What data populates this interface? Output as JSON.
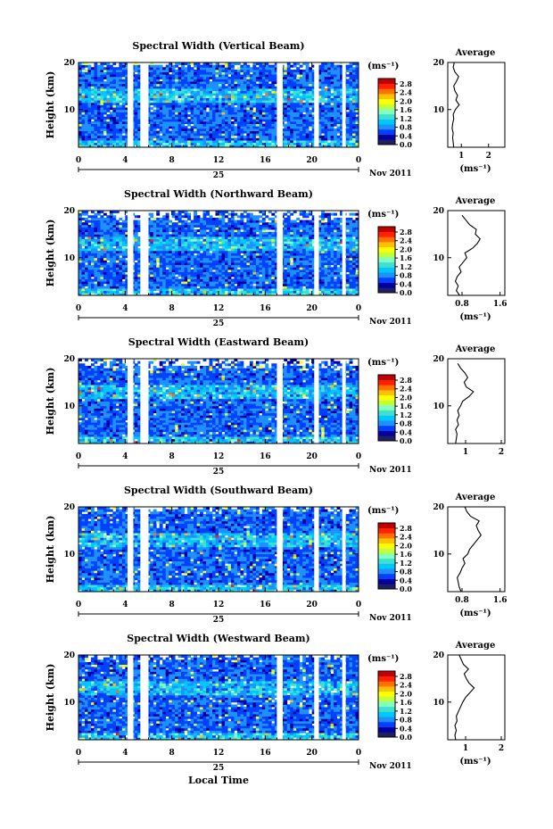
{
  "figure": {
    "xlabel": "Local Time",
    "date_label": "Nov 2011",
    "day_label": "25",
    "colorbar_unit": "(ms⁻¹)",
    "profile_title": "Average",
    "profile_xlabel": "(ms⁻¹)",
    "ylabel": "Height (km)",
    "colors": [
      "#202060",
      "#0000a0",
      "#0040ff",
      "#1e90ff",
      "#00c8ff",
      "#40e0d0",
      "#80ffc0",
      "#c0ff40",
      "#ffff00",
      "#ffc000",
      "#ff7000",
      "#ff2000",
      "#c00000"
    ]
  },
  "chart_data": [
    {
      "type": "heatmap",
      "title": "Spectral Width (Vertical Beam)",
      "ylabel": "Height (km)",
      "xlabel": "Local Time",
      "x_ticks": [
        "0",
        "4",
        "8",
        "12",
        "16",
        "20",
        "0"
      ],
      "y_ticks": [
        "20",
        "10"
      ],
      "xlim": [
        0,
        24
      ],
      "ylim": [
        2,
        20
      ],
      "colorbar": {
        "label": "(ms⁻¹)",
        "ticks": [
          "2.8",
          "2.4",
          "2.0",
          "1.6",
          "1.2",
          "0.8",
          "0.4",
          "0.0"
        ],
        "range": [
          0,
          2.8
        ]
      },
      "data_gaps_hours": [
        [
          4.2,
          4.7
        ],
        [
          5.3,
          6.0
        ],
        [
          17.0,
          17.5
        ],
        [
          20.2,
          20.6
        ],
        [
          22.6,
          22.9
        ]
      ],
      "top_height_km": 20,
      "profile": {
        "title": "Average",
        "xlabel": "(ms⁻¹)",
        "x_ticks": [
          "1",
          "2"
        ],
        "y_ticks": [
          "20",
          "10"
        ],
        "xlim": [
          0.5,
          2.6
        ],
        "heights": [
          2,
          3,
          4,
          5,
          6,
          7,
          8,
          9,
          10,
          11,
          12,
          13,
          14,
          15,
          16,
          17,
          18,
          19,
          20
        ],
        "values": [
          0.72,
          0.7,
          0.68,
          0.7,
          0.66,
          0.68,
          0.72,
          0.7,
          0.78,
          0.92,
          0.8,
          0.86,
          0.76,
          0.72,
          0.82,
          0.9,
          0.76,
          0.7,
          0.74
        ]
      }
    },
    {
      "type": "heatmap",
      "title": "Spectral Width (Northward Beam)",
      "ylabel": "Height (km)",
      "xlabel": "Local Time",
      "x_ticks": [
        "0",
        "4",
        "8",
        "12",
        "16",
        "20",
        "0"
      ],
      "y_ticks": [
        "20",
        "10"
      ],
      "xlim": [
        0,
        24
      ],
      "ylim": [
        2,
        20
      ],
      "colorbar": {
        "label": "(ms⁻¹)",
        "ticks": [
          "2.8",
          "2.4",
          "2.0",
          "1.6",
          "1.2",
          "0.8",
          "0.4",
          "0.0"
        ],
        "range": [
          0,
          2.8
        ]
      },
      "data_gaps_hours": [
        [
          4.2,
          4.7
        ],
        [
          5.3,
          6.0
        ],
        [
          17.0,
          17.5
        ],
        [
          20.2,
          20.6
        ],
        [
          22.6,
          22.9
        ]
      ],
      "top_height_km": 19,
      "profile": {
        "title": "Average",
        "xlabel": "(ms⁻¹)",
        "x_ticks": [
          "0.8",
          "1.6"
        ],
        "y_ticks": [
          "20",
          "10"
        ],
        "xlim": [
          0.5,
          1.7
        ],
        "heights": [
          2,
          3,
          4,
          5,
          6,
          7,
          8,
          9,
          10,
          11,
          12,
          13,
          14,
          15,
          16,
          17,
          18,
          19
        ],
        "values": [
          0.75,
          0.68,
          0.72,
          0.66,
          0.7,
          0.78,
          0.74,
          0.82,
          0.9,
          0.86,
          1.02,
          1.12,
          1.18,
          1.08,
          1.1,
          0.96,
          0.88,
          0.8
        ]
      }
    },
    {
      "type": "heatmap",
      "title": "Spectral Width (Eastward Beam)",
      "ylabel": "Height (km)",
      "xlabel": "Local Time",
      "x_ticks": [
        "0",
        "4",
        "8",
        "12",
        "16",
        "20",
        "0"
      ],
      "y_ticks": [
        "20",
        "10"
      ],
      "xlim": [
        0,
        24
      ],
      "ylim": [
        2,
        20
      ],
      "colorbar": {
        "label": "(ms⁻¹)",
        "ticks": [
          "2.8",
          "2.4",
          "2.0",
          "1.6",
          "1.2",
          "0.8",
          "0.4",
          "0.0"
        ],
        "range": [
          0,
          2.8
        ]
      },
      "data_gaps_hours": [
        [
          4.2,
          4.7
        ],
        [
          5.3,
          6.0
        ],
        [
          17.0,
          17.5
        ],
        [
          20.2,
          20.6
        ],
        [
          22.6,
          22.9
        ]
      ],
      "top_height_km": 19,
      "profile": {
        "title": "Average",
        "xlabel": "",
        "x_ticks": [
          "1",
          "2"
        ],
        "y_ticks": [
          "20",
          "10"
        ],
        "xlim": [
          0.5,
          2.1
        ],
        "heights": [
          2,
          3,
          4,
          5,
          6,
          7,
          8,
          9,
          10,
          11,
          12,
          13,
          14,
          15,
          16,
          17,
          18,
          19
        ],
        "values": [
          0.72,
          0.74,
          0.76,
          0.72,
          0.8,
          0.76,
          0.82,
          0.78,
          0.86,
          0.92,
          1.1,
          1.22,
          1.02,
          0.96,
          1.06,
          0.98,
          0.86,
          0.78
        ]
      }
    },
    {
      "type": "heatmap",
      "title": "Spectral Width (Southward Beam)",
      "ylabel": "Height (km)",
      "xlabel": "Local Time",
      "x_ticks": [
        "0",
        "4",
        "8",
        "12",
        "16",
        "20",
        "0"
      ],
      "y_ticks": [
        "20",
        "10"
      ],
      "xlim": [
        0,
        24
      ],
      "ylim": [
        2,
        20
      ],
      "colorbar": {
        "label": "(ms⁻¹)",
        "ticks": [
          "2.8",
          "2.4",
          "2.0",
          "1.6",
          "1.2",
          "0.8",
          "0.4",
          "0.0"
        ],
        "range": [
          0,
          2.8
        ]
      },
      "data_gaps_hours": [
        [
          4.2,
          4.7
        ],
        [
          5.3,
          6.0
        ],
        [
          17.0,
          17.5
        ],
        [
          20.2,
          20.6
        ],
        [
          22.6,
          22.9
        ]
      ],
      "top_height_km": 20,
      "profile": {
        "title": "Average",
        "xlabel": "(ms⁻¹)",
        "x_ticks": [
          "0.8",
          "1.6"
        ],
        "y_ticks": [
          "20",
          "10"
        ],
        "xlim": [
          0.5,
          1.7
        ],
        "heights": [
          2,
          3,
          4,
          5,
          6,
          7,
          8,
          9,
          10,
          11,
          12,
          13,
          14,
          15,
          16,
          17,
          18,
          19,
          20
        ],
        "values": [
          0.78,
          0.74,
          0.72,
          0.7,
          0.76,
          0.8,
          0.86,
          0.82,
          0.92,
          0.96,
          1.04,
          1.12,
          1.2,
          1.14,
          1.1,
          1.16,
          0.98,
          0.9,
          0.86
        ]
      }
    },
    {
      "type": "heatmap",
      "title": "Spectral Width (Westward Beam)",
      "ylabel": "Height (km)",
      "xlabel": "Local Time",
      "x_ticks": [
        "0",
        "4",
        "8",
        "12",
        "16",
        "20",
        "0"
      ],
      "y_ticks": [
        "20",
        "10"
      ],
      "xlim": [
        0,
        24
      ],
      "ylim": [
        2,
        20
      ],
      "colorbar": {
        "label": "(ms⁻¹)",
        "ticks": [
          "2.8",
          "2.4",
          "2.0",
          "1.6",
          "1.2",
          "0.8",
          "0.4",
          "0.0"
        ],
        "range": [
          0,
          2.8
        ]
      },
      "data_gaps_hours": [
        [
          4.2,
          4.7
        ],
        [
          5.3,
          6.0
        ],
        [
          17.0,
          17.5
        ],
        [
          20.2,
          20.6
        ],
        [
          22.6,
          22.9
        ]
      ],
      "top_height_km": 20,
      "profile": {
        "title": "Average",
        "xlabel": "(ms⁻¹)",
        "x_ticks": [
          "1",
          "2"
        ],
        "y_ticks": [
          "20",
          "10"
        ],
        "xlim": [
          0.5,
          2.1
        ],
        "heights": [
          2,
          3,
          4,
          5,
          6,
          7,
          8,
          9,
          10,
          11,
          12,
          13,
          14,
          15,
          16,
          17,
          18,
          19,
          20
        ],
        "values": [
          0.72,
          0.7,
          0.74,
          0.7,
          0.76,
          0.74,
          0.8,
          0.86,
          0.92,
          1.0,
          1.12,
          1.24,
          1.1,
          1.02,
          0.96,
          1.08,
          0.94,
          0.88,
          0.82
        ]
      }
    }
  ]
}
